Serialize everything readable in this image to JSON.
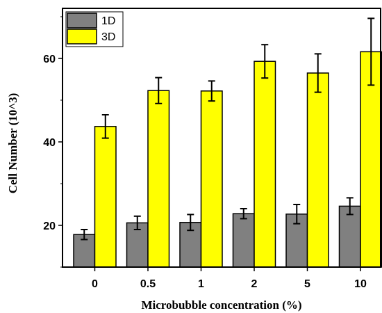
{
  "chart_data": {
    "type": "bar",
    "categories": [
      "0",
      "0.5",
      "1",
      "2",
      "5",
      "10"
    ],
    "series": [
      {
        "name": "1D",
        "color": "#808080",
        "values": [
          17.8,
          20.6,
          20.7,
          22.8,
          22.7,
          24.6
        ],
        "errors": [
          1.2,
          1.6,
          1.9,
          1.2,
          2.3,
          2.0
        ]
      },
      {
        "name": "3D",
        "color": "#ffff00",
        "values": [
          43.7,
          52.3,
          52.2,
          59.3,
          56.5,
          61.6
        ],
        "errors": [
          2.8,
          3.1,
          2.4,
          4.0,
          4.6,
          8.0
        ]
      }
    ],
    "xlabel": "Microbubble concentration (%)",
    "ylabel": "Cell Number (10^3)",
    "yticks": [
      20,
      40,
      60
    ],
    "ylim": [
      10,
      72
    ],
    "legend_position": "top-left",
    "grid": false
  }
}
